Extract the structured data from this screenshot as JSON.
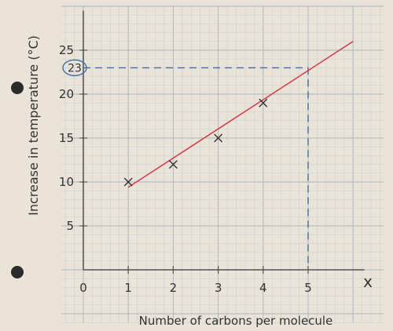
{
  "chart_data": {
    "type": "line",
    "xlabel": "Number of carbons per molecule",
    "ylabel": "Increase in temperature (°C)",
    "x_axis_symbol": "x",
    "origin_label": "0",
    "xlim": [
      0,
      6
    ],
    "ylim": [
      0,
      30
    ],
    "x_ticks": [
      1,
      2,
      3,
      4,
      5
    ],
    "y_ticks": [
      5,
      10,
      15,
      20,
      25
    ],
    "points": [
      {
        "x": 1,
        "y": 10
      },
      {
        "x": 2,
        "y": 12
      },
      {
        "x": 3,
        "y": 15
      },
      {
        "x": 4,
        "y": 19
      }
    ],
    "best_fit": {
      "x": [
        1,
        6
      ],
      "y": [
        9.4,
        26
      ]
    },
    "reading": {
      "x": 5,
      "y": 23,
      "label": "23"
    },
    "grid": true,
    "colors": {
      "paper": "#e9e3d8",
      "grid_minor": "#c9cfd6",
      "grid_major": "#a9b3be",
      "axis": "#555555",
      "line": "#d23a4e",
      "points": "#333333",
      "reading": "#3b6ea8",
      "text": "#333333"
    }
  }
}
